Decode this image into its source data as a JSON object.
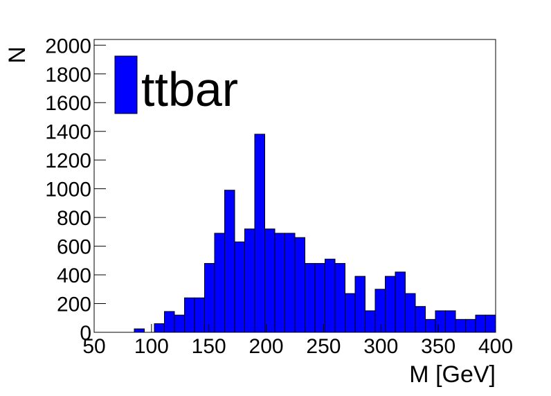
{
  "chart_data": {
    "type": "histogram",
    "xlabel": "M [GeV]",
    "ylabel": "N",
    "bins": [
      50,
      58.75,
      67.5,
      76.25,
      85,
      93.75,
      102.5,
      111.25,
      120,
      128.75,
      137.5,
      146.25,
      155,
      163.75,
      172.5,
      181.25,
      190,
      198.75,
      207.5,
      216.25,
      225,
      233.75,
      242.5,
      251.25,
      260,
      268.75,
      277.5,
      286.25,
      295,
      303.75,
      312.5,
      321.25,
      330,
      338.75,
      347.5,
      356.25,
      365,
      373.75,
      382.5,
      391.25,
      400
    ],
    "values": [
      0,
      0,
      0,
      0,
      24,
      0,
      60,
      145,
      120,
      240,
      240,
      480,
      690,
      990,
      630,
      720,
      1380,
      720,
      690,
      690,
      660,
      480,
      480,
      510,
      480,
      270,
      390,
      150,
      300,
      390,
      420,
      270,
      180,
      90,
      150,
      150,
      90,
      90,
      120,
      120
    ],
    "series_name": "ttbar",
    "color": "#0000ff",
    "xlim": [
      50,
      400
    ],
    "xticks": [
      50,
      100,
      150,
      200,
      250,
      300,
      350,
      400
    ],
    "ylim": [
      0,
      2040
    ],
    "yticks": [
      0,
      200,
      400,
      600,
      800,
      1000,
      1200,
      1400,
      1600,
      1800,
      2000
    ],
    "legend": "top-left"
  }
}
